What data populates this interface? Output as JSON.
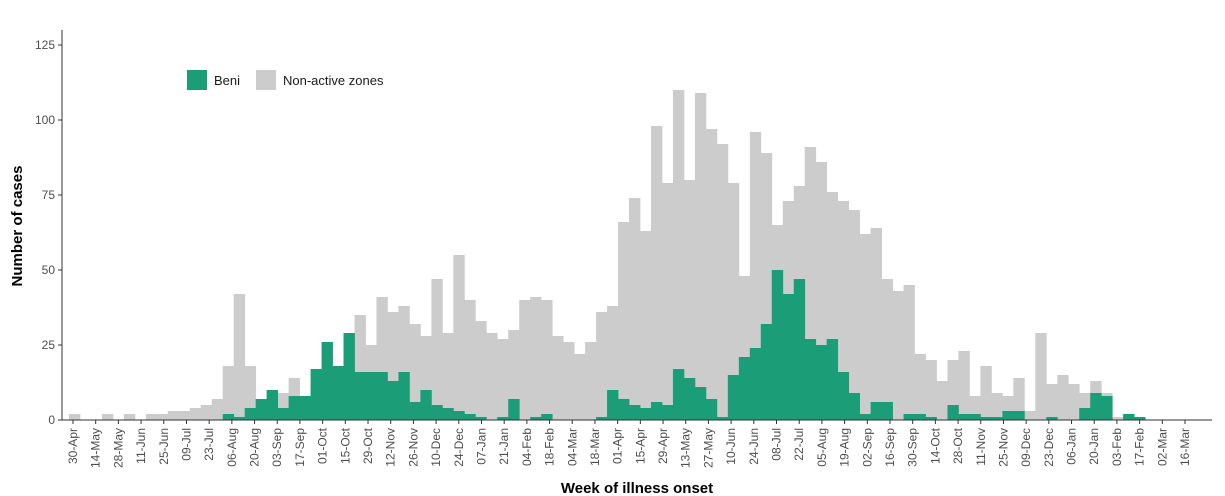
{
  "chart_data": {
    "type": "bar",
    "stacked": "overlaid",
    "xlabel": "Week of illness onset",
    "ylabel": "Number of cases",
    "ylim": [
      0,
      130
    ],
    "yticks": [
      0,
      25,
      50,
      75,
      100,
      125
    ],
    "grid": false,
    "legend_position": "top-left",
    "x_tick_labels": [
      "30-Apr",
      "14-May",
      "28-May",
      "11-Jun",
      "25-Jun",
      "09-Jul",
      "23-Jul",
      "06-Aug",
      "20-Aug",
      "03-Sep",
      "17-Sep",
      "01-Oct",
      "15-Oct",
      "29-Oct",
      "12-Nov",
      "26-Nov",
      "10-Dec",
      "24-Dec",
      "07-Jan",
      "21-Jan",
      "04-Feb",
      "18-Feb",
      "04-Mar",
      "18-Mar",
      "01-Apr",
      "15-Apr",
      "29-Apr",
      "13-May",
      "27-May",
      "10-Jun",
      "24-Jun",
      "08-Jul",
      "22-Jul",
      "05-Aug",
      "19-Aug",
      "02-Sep",
      "16-Sep",
      "30-Sep",
      "14-Oct",
      "28-Oct",
      "11-Nov",
      "25-Nov",
      "09-Dec",
      "23-Dec",
      "06-Jan",
      "20-Jan",
      "03-Feb",
      "17-Feb",
      "02-Mar",
      "16-Mar"
    ],
    "colors": {
      "beni": "#1b9e77",
      "non_active": "#cccccc"
    },
    "series": [
      {
        "name": "Non-active zones",
        "values": [
          2,
          0,
          0,
          2,
          0,
          2,
          0,
          2,
          2,
          3,
          3,
          4,
          5,
          7,
          18,
          42,
          18,
          5,
          8,
          9,
          14,
          8,
          14,
          12,
          18,
          22,
          35,
          25,
          41,
          36,
          38,
          32,
          28,
          47,
          29,
          55,
          40,
          33,
          29,
          27,
          30,
          40,
          41,
          40,
          28,
          26,
          22,
          26,
          36,
          38,
          66,
          74,
          63,
          98,
          79,
          110,
          80,
          109,
          97,
          92,
          79,
          48,
          96,
          89,
          65,
          73,
          78,
          91,
          86,
          76,
          73,
          70,
          62,
          64,
          47,
          43,
          45,
          22,
          20,
          13,
          20,
          23,
          8,
          18,
          9,
          8,
          14,
          3,
          29,
          12,
          15,
          12,
          9,
          13,
          9,
          1,
          0,
          0,
          0,
          0,
          0,
          0,
          0,
          0
        ]
      },
      {
        "name": "Beni",
        "values": [
          0,
          0,
          0,
          0,
          0,
          0,
          0,
          0,
          0,
          0,
          0,
          0,
          0,
          0,
          2,
          1,
          4,
          7,
          10,
          4,
          8,
          8,
          17,
          26,
          18,
          29,
          16,
          16,
          16,
          13,
          16,
          6,
          10,
          5,
          4,
          3,
          2,
          1,
          0,
          1,
          7,
          0,
          1,
          2,
          0,
          0,
          0,
          0,
          1,
          10,
          7,
          5,
          4,
          6,
          5,
          17,
          14,
          11,
          7,
          1,
          15,
          21,
          24,
          32,
          50,
          42,
          47,
          27,
          25,
          27,
          16,
          9,
          2,
          6,
          6,
          0,
          2,
          2,
          1,
          0,
          5,
          2,
          2,
          1,
          1,
          3,
          3,
          0,
          0,
          1,
          0,
          0,
          4,
          9,
          8,
          0,
          2,
          1,
          0,
          0,
          0,
          0,
          0,
          0
        ]
      }
    ]
  }
}
